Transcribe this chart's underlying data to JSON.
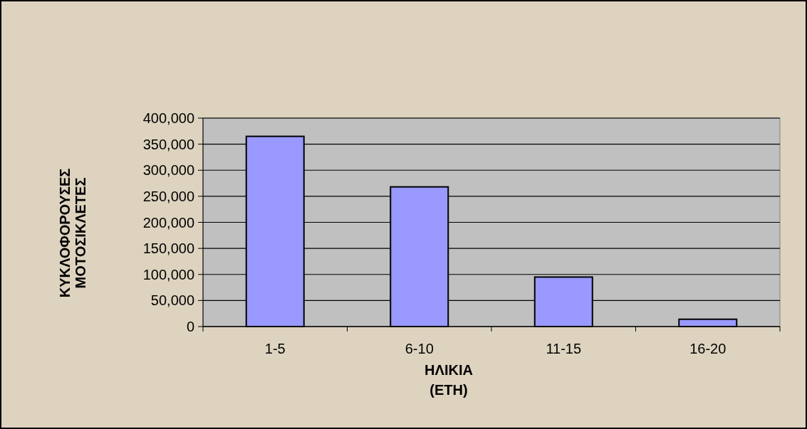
{
  "chart_data": {
    "type": "bar",
    "xlabel": "ΗΛΙΚΙΑ\n(ΕΤΗ)",
    "ylabel": "ΚΥΚΛΟΦΟΡΟΥΣΕΣ\nΜΟΤΟΣΙΚΛΕΤΕΣ",
    "categories": [
      "1-5",
      "6-10",
      "11-15",
      "16-20"
    ],
    "values": [
      365000,
      268000,
      95000,
      14000
    ],
    "color": "#9999ff",
    "ylim": [
      0,
      400000
    ],
    "yticks": [
      {
        "value": 0,
        "label": "0"
      },
      {
        "value": 50000,
        "label": "50,000"
      },
      {
        "value": 100000,
        "label": "100,000"
      },
      {
        "value": 150000,
        "label": "150,000"
      },
      {
        "value": 200000,
        "label": "200,000"
      },
      {
        "value": 250000,
        "label": "250,000"
      },
      {
        "value": 300000,
        "label": "300,000"
      },
      {
        "value": 350000,
        "label": "350,000"
      },
      {
        "value": 400000,
        "label": "400,000"
      }
    ],
    "grid": "y"
  }
}
